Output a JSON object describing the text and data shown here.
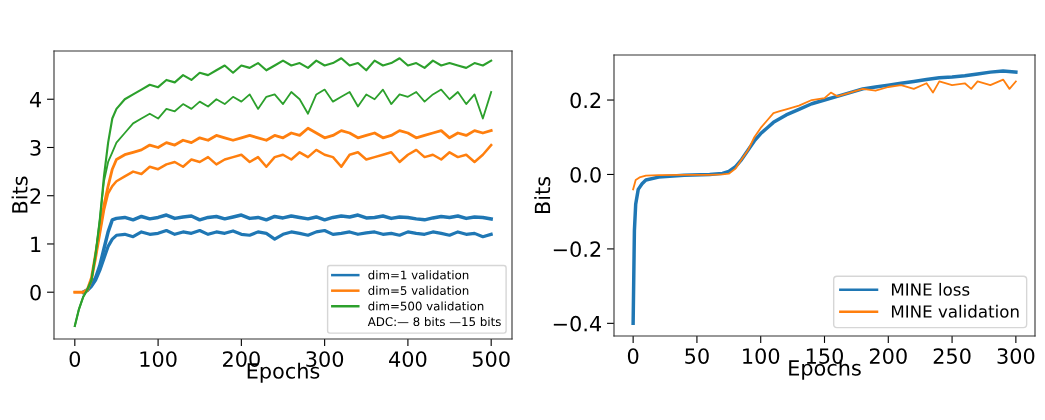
{
  "chart_data": [
    {
      "type": "line",
      "xlabel": "Epochs",
      "ylabel": "Bits",
      "xlim": [
        -25,
        525
      ],
      "ylim": [
        -0.97,
        5.0
      ],
      "xticks": [
        0,
        100,
        200,
        300,
        400,
        500
      ],
      "yticks": [
        0,
        1,
        2,
        3,
        4
      ],
      "grid": false,
      "legend": "bottom right",
      "annotations": [
        "ADC:— 8 bits —15 bits"
      ],
      "x": [
        0,
        5,
        10,
        15,
        20,
        25,
        30,
        35,
        40,
        45,
        50,
        60,
        70,
        80,
        90,
        100,
        110,
        120,
        130,
        140,
        150,
        160,
        170,
        180,
        190,
        200,
        210,
        220,
        230,
        240,
        250,
        260,
        270,
        280,
        290,
        300,
        310,
        320,
        330,
        340,
        350,
        360,
        370,
        380,
        390,
        400,
        410,
        420,
        430,
        440,
        450,
        460,
        470,
        480,
        490,
        500
      ],
      "series": [
        {
          "name": "dim=1 validation",
          "color": "#1f77b4",
          "values": [
            null,
            null,
            0,
            0.05,
            0.15,
            0.3,
            0.55,
            0.9,
            1.25,
            1.5,
            1.53,
            1.55,
            1.5,
            1.57,
            1.52,
            1.55,
            1.6,
            1.53,
            1.56,
            1.58,
            1.5,
            1.55,
            1.57,
            1.52,
            1.56,
            1.6,
            1.53,
            1.55,
            1.5,
            1.57,
            1.54,
            1.58,
            1.55,
            1.52,
            1.56,
            1.5,
            1.55,
            1.58,
            1.56,
            1.6,
            1.54,
            1.55,
            1.58,
            1.53,
            1.56,
            1.55,
            1.52,
            1.5,
            1.54,
            1.57,
            1.55,
            1.58,
            1.53,
            1.56,
            1.55,
            1.52
          ]
        },
        {
          "color": "#1f77b4",
          "values": [
            null,
            null,
            0,
            0.03,
            0.12,
            0.25,
            0.45,
            0.7,
            0.95,
            1.1,
            1.18,
            1.2,
            1.15,
            1.25,
            1.2,
            1.22,
            1.28,
            1.2,
            1.25,
            1.22,
            1.28,
            1.2,
            1.25,
            1.22,
            1.27,
            1.2,
            1.18,
            1.25,
            1.22,
            1.1,
            1.2,
            1.25,
            1.22,
            1.18,
            1.25,
            1.28,
            1.2,
            1.22,
            1.25,
            1.2,
            1.23,
            1.25,
            1.2,
            1.22,
            1.18,
            1.25,
            1.22,
            1.2,
            1.25,
            1.22,
            1.18,
            1.25,
            1.2,
            1.22,
            1.15,
            1.2
          ]
        },
        {
          "name": "dim=5 validation",
          "color": "#ff7f0e",
          "values": [
            0,
            0,
            0,
            0.05,
            0.3,
            0.8,
            1.3,
            1.8,
            2.2,
            2.55,
            2.75,
            2.85,
            2.9,
            2.95,
            3.05,
            3.0,
            3.1,
            3.05,
            3.15,
            3.1,
            3.2,
            3.15,
            3.25,
            3.2,
            3.15,
            3.2,
            3.25,
            3.2,
            3.15,
            3.25,
            3.2,
            3.3,
            3.25,
            3.4,
            3.3,
            3.2,
            3.25,
            3.35,
            3.3,
            3.2,
            3.25,
            3.3,
            3.2,
            3.25,
            3.35,
            3.3,
            3.2,
            3.25,
            3.3,
            3.35,
            3.2,
            3.3,
            3.25,
            3.35,
            3.3,
            3.35
          ]
        },
        {
          "color": "#ff7f0e",
          "values": [
            0,
            0,
            0,
            0.03,
            0.25,
            0.7,
            1.2,
            1.7,
            2.05,
            2.2,
            2.3,
            2.4,
            2.5,
            2.45,
            2.6,
            2.55,
            2.65,
            2.7,
            2.6,
            2.75,
            2.7,
            2.8,
            2.65,
            2.75,
            2.8,
            2.85,
            2.7,
            2.8,
            2.6,
            2.8,
            2.85,
            2.75,
            2.9,
            2.8,
            2.95,
            2.85,
            2.8,
            2.6,
            2.85,
            2.9,
            2.75,
            2.8,
            2.85,
            2.9,
            2.7,
            2.85,
            2.95,
            2.8,
            2.85,
            2.75,
            2.9,
            2.8,
            2.85,
            2.7,
            2.85,
            3.05
          ]
        },
        {
          "name": "dim=500 validation",
          "color": "#2ca02c",
          "values": [
            -0.7,
            -0.35,
            -0.1,
            0.05,
            0.25,
            0.8,
            1.5,
            2.4,
            3.1,
            3.6,
            3.8,
            4.0,
            4.1,
            4.2,
            4.3,
            4.25,
            4.4,
            4.35,
            4.5,
            4.4,
            4.55,
            4.5,
            4.6,
            4.7,
            4.55,
            4.7,
            4.65,
            4.75,
            4.6,
            4.7,
            4.8,
            4.7,
            4.75,
            4.65,
            4.8,
            4.7,
            4.75,
            4.85,
            4.7,
            4.75,
            4.6,
            4.8,
            4.7,
            4.75,
            4.85,
            4.7,
            4.75,
            4.65,
            4.8,
            4.7,
            4.75,
            4.7,
            4.65,
            4.75,
            4.7,
            4.8
          ]
        },
        {
          "color": "#2ca02c",
          "values": [
            -0.7,
            -0.35,
            -0.1,
            0.05,
            0.25,
            0.8,
            1.5,
            2.3,
            2.7,
            2.9,
            3.1,
            3.3,
            3.5,
            3.6,
            3.7,
            3.6,
            3.8,
            3.75,
            3.9,
            3.8,
            3.95,
            3.85,
            4.0,
            3.9,
            4.05,
            3.95,
            4.1,
            3.8,
            4.05,
            4.1,
            3.9,
            4.15,
            4.0,
            3.7,
            4.1,
            4.2,
            3.95,
            4.05,
            4.15,
            3.85,
            4.1,
            4.0,
            4.2,
            3.9,
            4.1,
            4.05,
            4.15,
            3.95,
            4.1,
            4.2,
            4.0,
            4.15,
            3.9,
            4.1,
            3.6,
            4.15
          ]
        }
      ]
    },
    {
      "type": "line",
      "xlabel": "Epochs",
      "ylabel": "Bits",
      "xlim": [
        -15,
        315
      ],
      "ylim": [
        -0.434,
        0.321
      ],
      "xticks": [
        0,
        50,
        100,
        150,
        200,
        250,
        300
      ],
      "yticks": [
        {
          "value": -0.4,
          "label": "−0.4"
        },
        {
          "value": -0.2,
          "label": "−0.2"
        },
        {
          "value": 0.0,
          "label": "0.0"
        },
        {
          "value": 0.2,
          "label": "0.2"
        }
      ],
      "grid": false,
      "legend": "bottom right",
      "series": [
        {
          "name": "MINE loss",
          "color": "#1f77b4",
          "x": [
            0,
            1,
            2,
            4,
            7,
            10,
            20,
            40,
            60,
            70,
            75,
            80,
            85,
            90,
            95,
            100,
            105,
            110,
            120,
            130,
            140,
            150,
            160,
            170,
            180,
            190,
            200,
            210,
            220,
            230,
            240,
            250,
            260,
            270,
            280,
            290,
            300
          ],
          "values": [
            -0.4,
            -0.15,
            -0.08,
            -0.04,
            -0.025,
            -0.015,
            -0.007,
            -0.002,
            0,
            0.003,
            0.008,
            0.02,
            0.04,
            0.065,
            0.09,
            0.11,
            0.125,
            0.14,
            0.16,
            0.175,
            0.19,
            0.2,
            0.21,
            0.22,
            0.23,
            0.235,
            0.24,
            0.245,
            0.25,
            0.255,
            0.26,
            0.262,
            0.265,
            0.27,
            0.275,
            0.278,
            0.275
          ]
        },
        {
          "name": "MINE validation",
          "color": "#ff7f0e",
          "x": [
            0,
            2,
            5,
            10,
            20,
            40,
            60,
            70,
            75,
            80,
            85,
            90,
            95,
            100,
            105,
            110,
            115,
            120,
            130,
            140,
            150,
            155,
            160,
            170,
            180,
            190,
            200,
            210,
            220,
            230,
            235,
            240,
            250,
            260,
            265,
            270,
            280,
            290,
            295,
            300
          ],
          "values": [
            -0.04,
            -0.015,
            -0.008,
            -0.003,
            -0.002,
            -0.001,
            -0.001,
            0,
            0.002,
            0.015,
            0.04,
            0.065,
            0.1,
            0.125,
            0.145,
            0.165,
            0.17,
            0.175,
            0.185,
            0.2,
            0.205,
            0.22,
            0.21,
            0.22,
            0.23,
            0.225,
            0.235,
            0.24,
            0.23,
            0.245,
            0.22,
            0.25,
            0.24,
            0.245,
            0.23,
            0.25,
            0.24,
            0.255,
            0.23,
            0.25
          ]
        }
      ]
    }
  ]
}
